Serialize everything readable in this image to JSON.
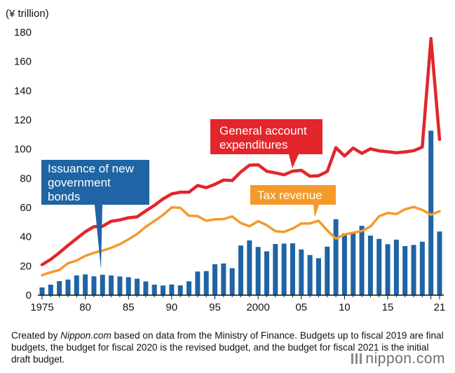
{
  "chart_data": {
    "type": "bar+line",
    "unit_label": "(¥ trillion)",
    "ylim": [
      0,
      180
    ],
    "yticks": [
      0,
      20,
      40,
      60,
      80,
      100,
      120,
      140,
      160,
      180
    ],
    "xlim": [
      1975,
      2021
    ],
    "xticks": [
      {
        "year": 1975,
        "label": "1975"
      },
      {
        "year": 1980,
        "label": "80"
      },
      {
        "year": 1985,
        "label": "85"
      },
      {
        "year": 1990,
        "label": "90"
      },
      {
        "year": 1995,
        "label": "95"
      },
      {
        "year": 2000,
        "label": "2000"
      },
      {
        "year": 2005,
        "label": "05"
      },
      {
        "year": 2010,
        "label": "10"
      },
      {
        "year": 2015,
        "label": "15"
      },
      {
        "year": 2021,
        "label": "21"
      }
    ],
    "years": [
      1975,
      1976,
      1977,
      1978,
      1979,
      1980,
      1981,
      1982,
      1983,
      1984,
      1985,
      1986,
      1987,
      1988,
      1989,
      1990,
      1991,
      1992,
      1993,
      1994,
      1995,
      1996,
      1997,
      1998,
      1999,
      2000,
      2001,
      2002,
      2003,
      2004,
      2005,
      2006,
      2007,
      2008,
      2009,
      2010,
      2011,
      2012,
      2013,
      2014,
      2015,
      2016,
      2017,
      2018,
      2019,
      2020,
      2021
    ],
    "series": [
      {
        "key": "bonds",
        "name": "Issuance of new government bonds",
        "kind": "bar",
        "color": "#1f64a4",
        "values": [
          5.3,
          7.2,
          9.6,
          10.7,
          13.5,
          14.2,
          12.9,
          14.0,
          13.5,
          12.8,
          12.3,
          11.3,
          9.4,
          7.2,
          6.6,
          7.3,
          6.7,
          9.5,
          16.2,
          16.5,
          21.2,
          21.7,
          18.5,
          34.0,
          37.5,
          33.0,
          30.0,
          35.0,
          35.3,
          35.5,
          31.3,
          27.5,
          25.3,
          33.2,
          52.0,
          42.3,
          42.8,
          47.5,
          40.8,
          38.5,
          34.9,
          38.0,
          33.6,
          34.4,
          36.6,
          112.6,
          43.6
        ]
      },
      {
        "key": "expenditures",
        "name": "General account expenditures",
        "kind": "line",
        "color": "#e2262b",
        "values": [
          20.9,
          24.5,
          29.1,
          34.1,
          38.8,
          43.4,
          46.9,
          47.2,
          50.6,
          51.5,
          53.0,
          53.6,
          57.7,
          61.5,
          65.9,
          69.3,
          70.5,
          70.5,
          75.1,
          73.6,
          75.9,
          78.8,
          78.5,
          84.4,
          89.0,
          89.3,
          84.8,
          83.7,
          82.4,
          84.9,
          85.5,
          81.4,
          81.8,
          84.7,
          101.0,
          95.3,
          100.7,
          97.1,
          100.2,
          98.8,
          98.2,
          97.5,
          98.1,
          98.9,
          101.4,
          175.7,
          106.6
        ]
      },
      {
        "key": "tax",
        "name": "Tax revenue",
        "kind": "line",
        "color": "#f39a2b",
        "values": [
          13.7,
          15.7,
          17.3,
          21.9,
          23.7,
          26.9,
          29.0,
          30.5,
          32.4,
          34.9,
          38.2,
          41.9,
          46.8,
          50.8,
          54.9,
          60.1,
          59.8,
          54.4,
          54.1,
          51.0,
          51.9,
          52.1,
          53.9,
          49.4,
          47.2,
          50.7,
          47.9,
          43.8,
          43.3,
          45.6,
          49.1,
          49.1,
          51.0,
          44.3,
          38.7,
          41.5,
          42.8,
          43.9,
          47.0,
          54.0,
          56.3,
          55.5,
          58.8,
          60.4,
          58.4,
          55.1,
          57.4
        ]
      }
    ]
  },
  "callouts": {
    "expenditures": "General account expenditures",
    "expenditures_lines": [
      "General account",
      "expenditures"
    ],
    "bonds": "Issuance of new government bonds",
    "bonds_lines": [
      "Issuance of new",
      "government",
      "bonds"
    ],
    "tax": "Tax revenue"
  },
  "footnote": {
    "prefix": "Created by ",
    "source": "Nippon.com",
    "rest": " based on data from the Ministry of Finance. Budgets up to fiscal 2019 are final budgets, the budget for fiscal 2020 is the revised budget, and the budget for fiscal 2021 is the initial draft budget."
  },
  "brand": "nippon.com"
}
